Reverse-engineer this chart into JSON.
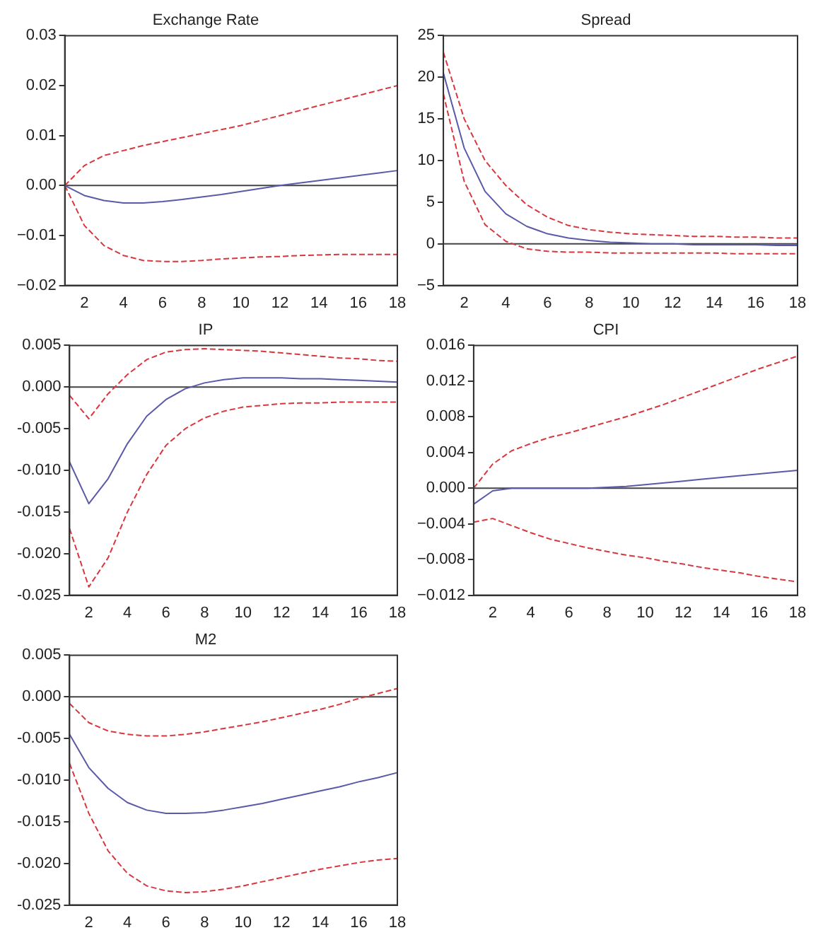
{
  "chart_data": [
    {
      "type": "line",
      "title": "Exchange Rate",
      "categories": [
        null,
        "2",
        null,
        "4",
        null,
        "6",
        null,
        "8",
        null,
        "10",
        null,
        "12",
        null,
        "14",
        null,
        "16",
        null,
        "18"
      ],
      "series": [
        {
          "color": "#5a5aa8",
          "line_style": "solid",
          "values": [
            0,
            -0.002,
            -0.003,
            -0.0035,
            -0.0035,
            -0.0032,
            -0.0028,
            -0.0023,
            -0.0018,
            -0.0012,
            -0.0006,
            0,
            0.0005,
            0.001,
            0.0015,
            0.002,
            0.0025,
            0.003
          ]
        },
        {
          "color": "#d9363e",
          "line_style": "dashed",
          "values": [
            0,
            0.004,
            0.006,
            0.007,
            0.008,
            0.0088,
            0.0096,
            0.0104,
            0.0112,
            0.012,
            0.013,
            0.014,
            0.015,
            0.016,
            0.017,
            0.018,
            0.019,
            0.02
          ]
        },
        {
          "color": "#d9363e",
          "line_style": "dashed",
          "values": [
            0,
            -0.008,
            -0.012,
            -0.014,
            -0.015,
            -0.0152,
            -0.0152,
            -0.015,
            -0.0147,
            -0.0145,
            -0.0143,
            -0.0142,
            -0.014,
            -0.0139,
            -0.0138,
            -0.0138,
            -0.0138,
            -0.0138
          ]
        }
      ],
      "ylim": [
        -0.02,
        0.03
      ],
      "yticks": [
        {
          "value": -0.02,
          "label": "−0.02"
        },
        {
          "value": -0.01,
          "label": "−0.01"
        },
        {
          "value": 0,
          "label": "0.00"
        },
        {
          "value": 0.01,
          "label": "0.01"
        },
        {
          "value": 0.02,
          "label": "0.02"
        },
        {
          "value": 0.03,
          "label": "0.03"
        }
      ],
      "ref_lines": [
        {
          "axis": "y",
          "value": 0,
          "color": "#444444"
        }
      ],
      "grid": false,
      "legend": false,
      "marker": "none"
    },
    {
      "type": "line",
      "title": "Spread",
      "categories": [
        null,
        "2",
        null,
        "4",
        null,
        "6",
        null,
        "8",
        null,
        "10",
        null,
        "12",
        null,
        "14",
        null,
        "16",
        null,
        "18"
      ],
      "series": [
        {
          "color": "#5a5aa8",
          "line_style": "solid",
          "values": [
            20.5,
            11.5,
            6.3,
            3.6,
            2.1,
            1.2,
            0.7,
            0.4,
            0.2,
            0.1,
            0,
            0,
            -0.1,
            -0.1,
            -0.1,
            -0.1,
            -0.2,
            -0.2
          ]
        },
        {
          "color": "#d9363e",
          "line_style": "dashed",
          "values": [
            23,
            15,
            10,
            7,
            4.7,
            3.2,
            2.2,
            1.7,
            1.4,
            1.2,
            1.1,
            1,
            0.9,
            0.9,
            0.8,
            0.8,
            0.7,
            0.7
          ]
        },
        {
          "color": "#d9363e",
          "line_style": "dashed",
          "values": [
            18,
            7.5,
            2.3,
            0.3,
            -0.6,
            -0.9,
            -1,
            -1,
            -1.1,
            -1.1,
            -1.1,
            -1.1,
            -1.1,
            -1.1,
            -1.2,
            -1.2,
            -1.2,
            -1.2
          ]
        }
      ],
      "ylim": [
        -5,
        25
      ],
      "yticks": [
        {
          "value": -5,
          "label": "−5"
        },
        0,
        5,
        10,
        15,
        20,
        25
      ],
      "ref_lines": [
        {
          "axis": "y",
          "value": 0,
          "color": "#444444"
        }
      ],
      "grid": false,
      "legend": false,
      "marker": "none"
    },
    {
      "type": "line",
      "title": "IP",
      "categories": [
        null,
        "2",
        null,
        "4",
        null,
        "6",
        null,
        "8",
        null,
        "10",
        null,
        "12",
        null,
        "14",
        null,
        "16",
        null,
        "18"
      ],
      "series": [
        {
          "color": "#5a5aa8",
          "line_style": "solid",
          "values": [
            -0.009,
            -0.014,
            -0.011,
            -0.0068,
            -0.0035,
            -0.0015,
            -0.0002,
            0.0005,
            0.0009,
            0.0011,
            0.0011,
            0.0011,
            0.001,
            0.001,
            0.0009,
            0.0008,
            0.0007,
            0.0006
          ]
        },
        {
          "color": "#d9363e",
          "line_style": "dashed",
          "values": [
            -0.001,
            -0.0038,
            -0.0008,
            0.0015,
            0.0033,
            0.0042,
            0.0045,
            0.0046,
            0.0045,
            0.0044,
            0.0043,
            0.0041,
            0.0039,
            0.0037,
            0.0035,
            0.0034,
            0.0032,
            0.0031
          ]
        },
        {
          "color": "#d9363e",
          "line_style": "dashed",
          "values": [
            -0.017,
            -0.024,
            -0.0205,
            -0.015,
            -0.0105,
            -0.007,
            -0.005,
            -0.0037,
            -0.0029,
            -0.0024,
            -0.0022,
            -0.002,
            -0.0019,
            -0.0019,
            -0.0018,
            -0.0018,
            -0.0018,
            -0.0018
          ]
        }
      ],
      "ylim": [
        -0.025,
        0.005
      ],
      "yticks": [
        {
          "value": -0.025,
          "label": "-0.025"
        },
        {
          "value": -0.02,
          "label": "-0.020"
        },
        {
          "value": -0.015,
          "label": "-0.015"
        },
        {
          "value": -0.01,
          "label": "-0.010"
        },
        {
          "value": -0.005,
          "label": "-0.005"
        },
        {
          "value": 0,
          "label": "0.000"
        },
        {
          "value": 0.005,
          "label": "0.005"
        }
      ],
      "ref_lines": [
        {
          "axis": "y",
          "value": 0,
          "color": "#444444"
        }
      ],
      "grid": false,
      "legend": false,
      "marker": "none"
    },
    {
      "type": "line",
      "title": "CPI",
      "categories": [
        null,
        "2",
        null,
        "4",
        null,
        "6",
        null,
        "8",
        null,
        "10",
        null,
        "12",
        null,
        "14",
        null,
        "16",
        null,
        "18"
      ],
      "series": [
        {
          "color": "#5a5aa8",
          "line_style": "solid",
          "values": [
            -0.0018,
            -0.0003,
            0,
            0,
            0,
            0,
            0,
            0.0001,
            0.0002,
            0.0004,
            0.0006,
            0.0008,
            0.001,
            0.0012,
            0.0014,
            0.0016,
            0.0018,
            0.002
          ]
        },
        {
          "color": "#d9363e",
          "line_style": "dashed",
          "values": [
            0,
            0.0027,
            0.0042,
            0.005,
            0.0057,
            0.0062,
            0.0068,
            0.0074,
            0.008,
            0.0087,
            0.0094,
            0.0102,
            0.011,
            0.0118,
            0.0126,
            0.0134,
            0.0141,
            0.0148
          ]
        },
        {
          "color": "#d9363e",
          "line_style": "dashed",
          "values": [
            -0.0038,
            -0.0034,
            -0.0042,
            -0.005,
            -0.0057,
            -0.0062,
            -0.0067,
            -0.0071,
            -0.0075,
            -0.0078,
            -0.0082,
            -0.0085,
            -0.0089,
            -0.0092,
            -0.0095,
            -0.0099,
            -0.0102,
            -0.0105
          ]
        }
      ],
      "ylim": [
        -0.012,
        0.016
      ],
      "yticks": [
        {
          "value": -0.012,
          "label": "−0.012"
        },
        {
          "value": -0.008,
          "label": "−0.008"
        },
        {
          "value": -0.004,
          "label": "−0.004"
        },
        {
          "value": 0,
          "label": "0.000"
        },
        {
          "value": 0.004,
          "label": "0.004"
        },
        {
          "value": 0.008,
          "label": "0.008"
        },
        {
          "value": 0.012,
          "label": "0.012"
        },
        {
          "value": 0.016,
          "label": "0.016"
        }
      ],
      "ref_lines": [
        {
          "axis": "y",
          "value": 0,
          "color": "#444444"
        }
      ],
      "grid": false,
      "legend": false,
      "marker": "none"
    },
    {
      "type": "line",
      "title": "M2",
      "categories": [
        null,
        "2",
        null,
        "4",
        null,
        "6",
        null,
        "8",
        null,
        "10",
        null,
        "12",
        null,
        "14",
        null,
        "16",
        null,
        "18"
      ],
      "series": [
        {
          "color": "#5a5aa8",
          "line_style": "solid",
          "values": [
            -0.0045,
            -0.0085,
            -0.011,
            -0.0127,
            -0.0136,
            -0.014,
            -0.014,
            -0.0139,
            -0.0136,
            -0.0132,
            -0.0128,
            -0.0123,
            -0.0118,
            -0.0113,
            -0.0108,
            -0.0102,
            -0.0097,
            -0.0091
          ]
        },
        {
          "color": "#d9363e",
          "line_style": "dashed",
          "values": [
            -0.0008,
            -0.0031,
            -0.0041,
            -0.0045,
            -0.0047,
            -0.0047,
            -0.0045,
            -0.0042,
            -0.0038,
            -0.0034,
            -0.003,
            -0.0025,
            -0.002,
            -0.0015,
            -0.0009,
            -0.0002,
            0.0004,
            0.001
          ]
        },
        {
          "color": "#d9363e",
          "line_style": "dashed",
          "values": [
            -0.008,
            -0.014,
            -0.0185,
            -0.0212,
            -0.0227,
            -0.0233,
            -0.0235,
            -0.0234,
            -0.0231,
            -0.0227,
            -0.0222,
            -0.0217,
            -0.0212,
            -0.0207,
            -0.0203,
            -0.0199,
            -0.0196,
            -0.0194
          ]
        }
      ],
      "ylim": [
        -0.025,
        0.005
      ],
      "yticks": [
        {
          "value": -0.025,
          "label": "-0.025"
        },
        {
          "value": -0.02,
          "label": "-0.020"
        },
        {
          "value": -0.015,
          "label": "-0.015"
        },
        {
          "value": -0.01,
          "label": "-0.010"
        },
        {
          "value": -0.005,
          "label": "-0.005"
        },
        {
          "value": 0,
          "label": "0.000"
        },
        {
          "value": 0.005,
          "label": "0.005"
        }
      ],
      "ref_lines": [
        {
          "axis": "y",
          "value": 0,
          "color": "#444444"
        }
      ],
      "grid": false,
      "legend": false,
      "marker": "none"
    }
  ]
}
